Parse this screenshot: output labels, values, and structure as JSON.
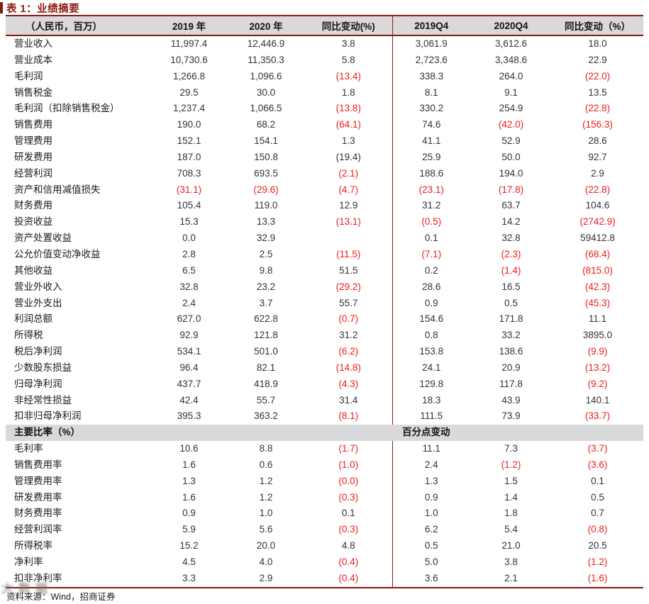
{
  "colors": {
    "maroon": "#8a1a10",
    "negative": "#ee1c1c",
    "header_bg": "#d9d9d9"
  },
  "title": "表 1：业绩摘要",
  "footer": {
    "source": "资料来源：Wind，招商证券"
  },
  "watermark": {
    "text": "大数据"
  },
  "table": {
    "headers": [
      "（人民币，百万）",
      "2019 年",
      "2020 年",
      "同比变动(%)",
      "2019Q4",
      "2020Q4",
      "同比变动（%）"
    ],
    "rows": [
      {
        "label": "营业收入",
        "cells": [
          "11,997.4",
          "12,446.9",
          "3.8",
          "3,061.9",
          "3,612.6",
          "18.0"
        ],
        "red": [
          0,
          0,
          0,
          0,
          0,
          0
        ]
      },
      {
        "label": "营业成本",
        "cells": [
          "10,730.6",
          "11,350.3",
          "5.8",
          "2,723.6",
          "3,348.6",
          "22.9"
        ],
        "red": [
          0,
          0,
          0,
          0,
          0,
          0
        ]
      },
      {
        "label": "毛利润",
        "cells": [
          "1,266.8",
          "1,096.6",
          "(13.4)",
          "338.3",
          "264.0",
          "(22.0)"
        ],
        "red": [
          0,
          0,
          1,
          0,
          0,
          1
        ]
      },
      {
        "label": "销售税金",
        "cells": [
          "29.5",
          "30.0",
          "1.8",
          "8.1",
          "9.1",
          "13.5"
        ],
        "red": [
          0,
          0,
          0,
          0,
          0,
          0
        ]
      },
      {
        "label": "毛利润（扣除销售税金）",
        "cells": [
          "1,237.4",
          "1,066.5",
          "(13.8)",
          "330.2",
          "254.9",
          "(22.8)"
        ],
        "red": [
          0,
          0,
          1,
          0,
          0,
          1
        ]
      },
      {
        "label": "销售费用",
        "cells": [
          "190.0",
          "68.2",
          "(64.1)",
          "74.6",
          "(42.0)",
          "(156.3)"
        ],
        "red": [
          0,
          0,
          1,
          0,
          1,
          1
        ]
      },
      {
        "label": "管理费用",
        "cells": [
          "152.1",
          "154.1",
          "1.3",
          "41.1",
          "52.9",
          "28.6"
        ],
        "red": [
          0,
          0,
          0,
          0,
          0,
          0
        ]
      },
      {
        "label": "研发费用",
        "cells": [
          "187.0",
          "150.8",
          "(19.4)",
          "25.9",
          "50.0",
          "92.7"
        ],
        "red": [
          0,
          0,
          0,
          0,
          0,
          0
        ]
      },
      {
        "label": "经营利润",
        "cells": [
          "708.3",
          "693.5",
          "(2.1)",
          "188.6",
          "194.0",
          "2.9"
        ],
        "red": [
          0,
          0,
          1,
          0,
          0,
          0
        ]
      },
      {
        "label": "资产和信用减值损失",
        "cells": [
          "(31.1)",
          "(29.6)",
          "(4.7)",
          "(23.1)",
          "(17.8)",
          "(22.8)"
        ],
        "red": [
          1,
          1,
          1,
          1,
          1,
          1
        ]
      },
      {
        "label": "财务费用",
        "cells": [
          "105.4",
          "119.0",
          "12.9",
          "31.2",
          "63.7",
          "104.6"
        ],
        "red": [
          0,
          0,
          0,
          0,
          0,
          0
        ]
      },
      {
        "label": "投资收益",
        "cells": [
          "15.3",
          "13.3",
          "(13.1)",
          "(0.5)",
          "14.2",
          "(2742.9)"
        ],
        "red": [
          0,
          0,
          1,
          1,
          0,
          1
        ]
      },
      {
        "label": "资产处置收益",
        "cells": [
          "0.0",
          "32.9",
          "",
          "0.1",
          "32.8",
          "59412.8"
        ],
        "red": [
          0,
          0,
          0,
          0,
          0,
          0
        ]
      },
      {
        "label": "公允价值变动净收益",
        "cells": [
          "2.8",
          "2.5",
          "(11.5)",
          "(7.1)",
          "(2.3)",
          "(68.4)"
        ],
        "red": [
          0,
          0,
          1,
          1,
          1,
          1
        ]
      },
      {
        "label": "其他收益",
        "cells": [
          "6.5",
          "9.8",
          "51.5",
          "0.2",
          "(1.4)",
          "(815.0)"
        ],
        "red": [
          0,
          0,
          0,
          0,
          1,
          1
        ]
      },
      {
        "label": "营业外收入",
        "cells": [
          "32.8",
          "23.2",
          "(29.2)",
          "28.6",
          "16.5",
          "(42.3)"
        ],
        "red": [
          0,
          0,
          1,
          0,
          0,
          1
        ]
      },
      {
        "label": "营业外支出",
        "cells": [
          "2.4",
          "3.7",
          "55.7",
          "0.9",
          "0.5",
          "(45.3)"
        ],
        "red": [
          0,
          0,
          0,
          0,
          0,
          1
        ]
      },
      {
        "label": "利润总额",
        "cells": [
          "627.0",
          "622.8",
          "(0.7)",
          "154.6",
          "171.8",
          "11.1"
        ],
        "red": [
          0,
          0,
          1,
          0,
          0,
          0
        ]
      },
      {
        "label": "所得税",
        "cells": [
          "92.9",
          "121.8",
          "31.2",
          "0.8",
          "33.2",
          "3895.0"
        ],
        "red": [
          0,
          0,
          0,
          0,
          0,
          0
        ]
      },
      {
        "label": "税后净利润",
        "cells": [
          "534.1",
          "501.0",
          "(6.2)",
          "153.8",
          "138.6",
          "(9.9)"
        ],
        "red": [
          0,
          0,
          1,
          0,
          0,
          1
        ]
      },
      {
        "label": "少数股东损益",
        "cells": [
          "96.4",
          "82.1",
          "(14.8)",
          "24.1",
          "20.9",
          "(13.2)"
        ],
        "red": [
          0,
          0,
          1,
          0,
          0,
          1
        ]
      },
      {
        "label": "归母净利润",
        "cells": [
          "437.7",
          "418.9",
          "(4.3)",
          "129.8",
          "117.8",
          "(9.2)"
        ],
        "red": [
          0,
          0,
          1,
          0,
          0,
          1
        ]
      },
      {
        "label": "非经常性损益",
        "cells": [
          "42.4",
          "55.7",
          "31.4",
          "18.3",
          "43.9",
          "140.1"
        ],
        "red": [
          0,
          0,
          0,
          0,
          0,
          0
        ]
      },
      {
        "label": "扣非归母净利润",
        "cells": [
          "395.3",
          "363.2",
          "(8.1)",
          "111.5",
          "73.9",
          "(33.7)"
        ],
        "red": [
          0,
          0,
          1,
          0,
          0,
          1
        ]
      },
      {
        "type": "section",
        "label": "主要比率（%）",
        "right_label": "百分点变动"
      },
      {
        "label": "毛利率",
        "cells": [
          "10.6",
          "8.8",
          "(1.7)",
          "11.1",
          "7.3",
          "(3.7)"
        ],
        "red": [
          0,
          0,
          1,
          0,
          0,
          1
        ]
      },
      {
        "label": "销售费用率",
        "cells": [
          "1.6",
          "0.6",
          "(1.0)",
          "2.4",
          "(1.2)",
          "(3.6)"
        ],
        "red": [
          0,
          0,
          1,
          0,
          1,
          1
        ]
      },
      {
        "label": "管理费用率",
        "cells": [
          "1.3",
          "1.2",
          "(0.0)",
          "1.3",
          "1.5",
          "0.1"
        ],
        "red": [
          0,
          0,
          1,
          0,
          0,
          0
        ]
      },
      {
        "label": "研发费用率",
        "cells": [
          "1.6",
          "1.2",
          "(0.3)",
          "0.9",
          "1.4",
          "0.5"
        ],
        "red": [
          0,
          0,
          1,
          0,
          0,
          0
        ]
      },
      {
        "label": "财务费用率",
        "cells": [
          "0.9",
          "1.0",
          "0.1",
          "1.0",
          "1.8",
          "0.7"
        ],
        "red": [
          0,
          0,
          0,
          0,
          0,
          0
        ]
      },
      {
        "label": "经营利润率",
        "cells": [
          "5.9",
          "5.6",
          "(0.3)",
          "6.2",
          "5.4",
          "(0.8)"
        ],
        "red": [
          0,
          0,
          1,
          0,
          0,
          1
        ]
      },
      {
        "label": "所得税率",
        "cells": [
          "15.2",
          "20.0",
          "4.8",
          "0.5",
          "21.0",
          "20.5"
        ],
        "red": [
          0,
          0,
          0,
          0,
          0,
          0
        ]
      },
      {
        "label": "净利率",
        "cells": [
          "4.5",
          "4.0",
          "(0.4)",
          "5.0",
          "3.8",
          "(1.2)"
        ],
        "red": [
          0,
          0,
          1,
          0,
          0,
          1
        ]
      },
      {
        "label": "扣非净利率",
        "cells": [
          "3.3",
          "2.9",
          "(0.4)",
          "3.6",
          "2.1",
          "(1.6)"
        ],
        "red": [
          0,
          0,
          1,
          0,
          0,
          1
        ]
      }
    ]
  }
}
